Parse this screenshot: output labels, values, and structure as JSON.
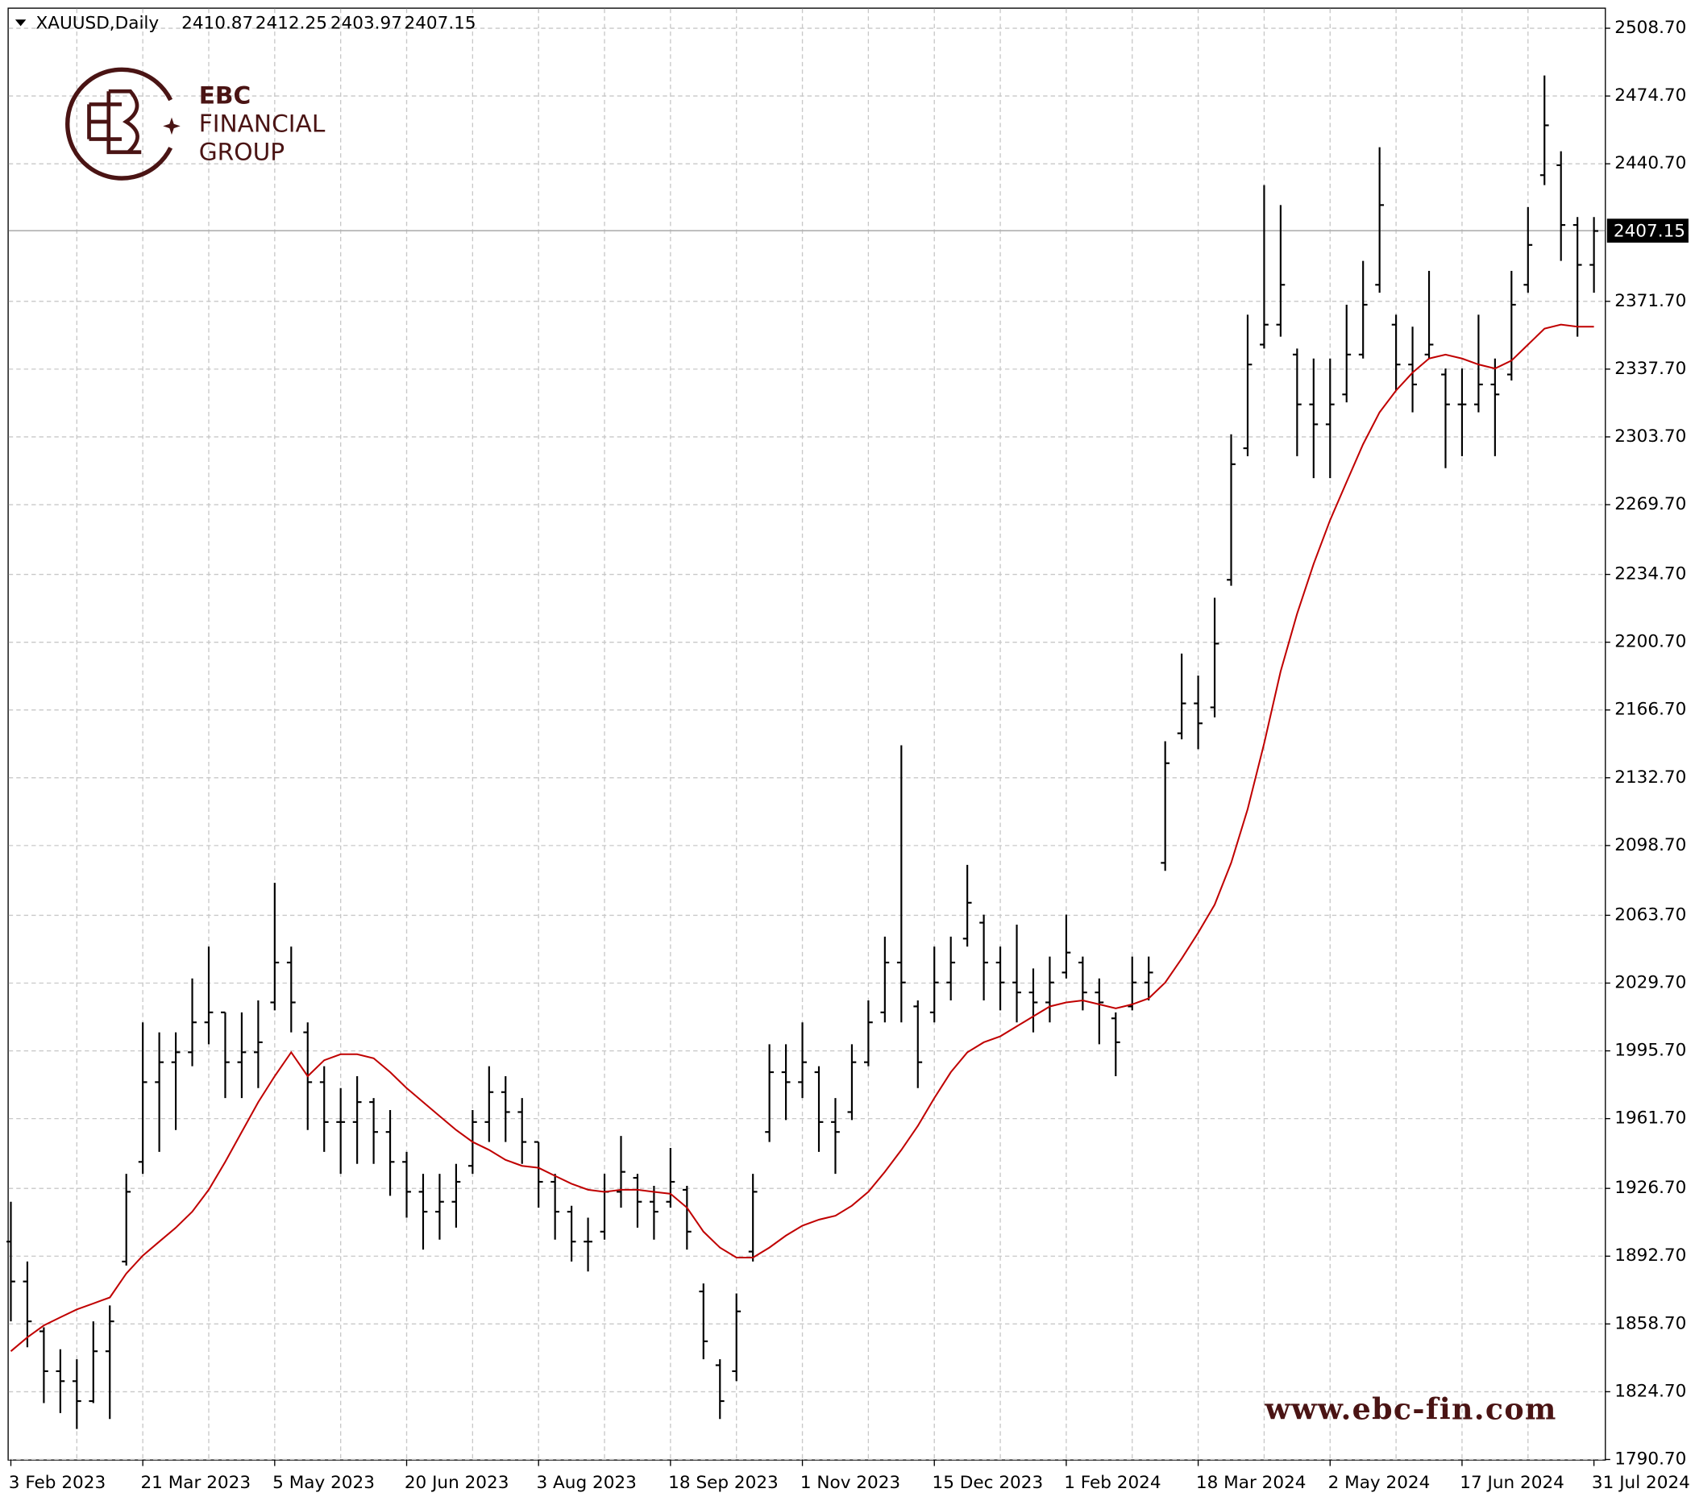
{
  "chart_data": {
    "type": "ohlc",
    "symbol": "XAUUSD,Daily",
    "header_values": [
      2410.87,
      2412.25,
      2403.97,
      2407.15
    ],
    "brand": {
      "line1": "EBC",
      "line2": "FINANCIAL",
      "line3": "GROUP",
      "website": "www.ebc-fin.com"
    },
    "categories": [
      "3 Feb 2023",
      null,
      null,
      null,
      null,
      null,
      null,
      null,
      "21 Mar 2023",
      null,
      null,
      null,
      null,
      null,
      null,
      null,
      "5 May 2023",
      null,
      null,
      null,
      null,
      null,
      null,
      null,
      "20 Jun 2023",
      null,
      null,
      null,
      null,
      null,
      null,
      null,
      "3 Aug 2023",
      null,
      null,
      null,
      null,
      null,
      null,
      null,
      "18 Sep 2023",
      null,
      null,
      null,
      null,
      null,
      null,
      null,
      "1 Nov 2023",
      null,
      null,
      null,
      null,
      null,
      null,
      null,
      "15 Dec 2023",
      null,
      null,
      null,
      null,
      null,
      null,
      null,
      "1 Feb 2024",
      null,
      null,
      null,
      null,
      null,
      null,
      null,
      "18 Mar 2024",
      null,
      null,
      null,
      null,
      null,
      null,
      null,
      "2 May 2024",
      null,
      null,
      null,
      null,
      null,
      null,
      null,
      "17 Jun 2024",
      null,
      null,
      null,
      null,
      null,
      null,
      null,
      "31 Jul 2024"
    ],
    "open": [
      1900,
      1880,
      1855,
      1835,
      1830,
      1820,
      1845,
      1890,
      1940,
      1980,
      1990,
      1995,
      2010,
      2015,
      1990,
      1995,
      2020,
      2040,
      2005,
      1980,
      1960,
      1960,
      1970,
      1955,
      1940,
      1925,
      1915,
      1920,
      1938,
      1960,
      1975,
      1965,
      1950,
      1930,
      1915,
      1900,
      1905,
      1925,
      1932,
      1920,
      1920,
      1926,
      1875,
      1838,
      1835,
      1895,
      1955,
      1985,
      1980,
      1985,
      1960,
      1965,
      1990,
      2015,
      2040,
      2018,
      2015,
      2030,
      2052,
      2060,
      2040,
      2030,
      2025,
      2020,
      2035,
      2040,
      2025,
      2012,
      2018,
      2030,
      2090,
      2155,
      2170,
      2168,
      2232,
      2298,
      2350,
      2360,
      2345,
      2320,
      2310,
      2325,
      2345,
      2380,
      2360,
      2340,
      2345,
      2335,
      2320,
      2320,
      2330,
      2335,
      2380,
      2435,
      2440,
      2410,
      2390
    ],
    "high": [
      1920,
      1890,
      1857,
      1846,
      1841,
      1860,
      1868,
      1934,
      2010,
      2005,
      2005,
      2032,
      2048,
      2015,
      2015,
      2021,
      2080,
      2048,
      2010,
      1988,
      1977,
      1983,
      1972,
      1966,
      1945,
      1934,
      1934,
      1939,
      1966,
      1988,
      1983,
      1972,
      1950,
      1934,
      1918,
      1912,
      1934,
      1953,
      1934,
      1928,
      1947,
      1928,
      1879,
      1841,
      1874,
      1934,
      1999,
      1999,
      2010,
      1988,
      1972,
      1999,
      2021,
      2053,
      2149,
      2021,
      2048,
      2053,
      2089,
      2064,
      2048,
      2059,
      2037,
      2043,
      2064,
      2043,
      2032,
      2015,
      2043,
      2043,
      2151,
      2195,
      2184,
      2223,
      2305,
      2365,
      2430,
      2420,
      2348,
      2343,
      2343,
      2370,
      2392,
      2449,
      2365,
      2359,
      2387,
      2338,
      2338,
      2365,
      2343,
      2387,
      2419,
      2485,
      2447,
      2414,
      2414
    ],
    "low": [
      1860,
      1847,
      1819,
      1814,
      1806,
      1819,
      1811,
      1888,
      1934,
      1945,
      1956,
      1988,
      1999,
      1972,
      1972,
      1977,
      2016,
      2005,
      1956,
      1945,
      1934,
      1939,
      1939,
      1923,
      1912,
      1896,
      1901,
      1907,
      1934,
      1950,
      1950,
      1939,
      1917,
      1901,
      1890,
      1885,
      1901,
      1917,
      1907,
      1901,
      1917,
      1896,
      1841,
      1811,
      1830,
      1890,
      1950,
      1961,
      1972,
      1945,
      1934,
      1961,
      1988,
      2010,
      2010,
      1977,
      2010,
      2021,
      2048,
      2021,
      2016,
      2010,
      2005,
      2010,
      2032,
      2016,
      1999,
      1983,
      2016,
      2021,
      2086,
      2152,
      2147,
      2163,
      2229,
      2294,
      2348,
      2354,
      2294,
      2283,
      2283,
      2321,
      2343,
      2376,
      2327,
      2316,
      2343,
      2288,
      2294,
      2316,
      2294,
      2332,
      2376,
      2430,
      2392,
      2354,
      2376
    ],
    "close": [
      1880,
      1860,
      1835,
      1830,
      1820,
      1845,
      1860,
      1925,
      1980,
      1990,
      1995,
      2010,
      2015,
      1990,
      1995,
      2000,
      2040,
      2020,
      1980,
      1960,
      1960,
      1970,
      1955,
      1940,
      1925,
      1915,
      1920,
      1930,
      1960,
      1975,
      1965,
      1950,
      1930,
      1915,
      1900,
      1900,
      1925,
      1935,
      1920,
      1915,
      1930,
      1905,
      1850,
      1820,
      1865,
      1925,
      1985,
      1980,
      1990,
      1960,
      1955,
      1990,
      2010,
      2040,
      2030,
      1990,
      2030,
      2040,
      2070,
      2040,
      2030,
      2025,
      2020,
      2030,
      2045,
      2025,
      2020,
      2000,
      2030,
      2035,
      2140,
      2170,
      2160,
      2200,
      2290,
      2340,
      2360,
      2380,
      2320,
      2310,
      2320,
      2345,
      2370,
      2420,
      2340,
      2330,
      2350,
      2320,
      2320,
      2330,
      2325,
      2370,
      2400,
      2460,
      2410,
      2390,
      2407
    ],
    "bar_color": "#000000",
    "moving_average": {
      "color": "#c00000",
      "values": [
        1845,
        1852,
        1858,
        1862,
        1866,
        1869,
        1872,
        1884,
        1893,
        1900,
        1907,
        1915,
        1926,
        1940,
        1955,
        1970,
        1983,
        1995,
        1983,
        1991,
        1994,
        1994,
        1992,
        1985,
        1977,
        1970,
        1963,
        1956,
        1950,
        1946,
        1941,
        1938,
        1937,
        1933,
        1929,
        1926,
        1925,
        1926,
        1926,
        1925,
        1924,
        1917,
        1905,
        1897,
        1892,
        1892,
        1897,
        1903,
        1908,
        1911,
        1913,
        1918,
        1925,
        1935,
        1946,
        1958,
        1972,
        1985,
        1995,
        2000,
        2003,
        2008,
        2013,
        2018,
        2020,
        2021,
        2019,
        2017,
        2019,
        2022,
        2030,
        2042,
        2055,
        2069,
        2090,
        2117,
        2150,
        2186,
        2215,
        2240,
        2262,
        2281,
        2300,
        2316,
        2327,
        2336,
        2343,
        2345,
        2343,
        2340,
        2338,
        2342,
        2350,
        2358,
        2360,
        2359,
        2359
      ]
    },
    "current_price": 2407.15,
    "ylim": [
      1790.7,
      2518.5
    ],
    "yticks": [
      {
        "value": 1790.7,
        "label": "1790.70"
      },
      {
        "value": 1824.7,
        "label": "1824.70"
      },
      {
        "value": 1858.7,
        "label": "1858.70"
      },
      {
        "value": 1892.7,
        "label": "1892.70"
      },
      {
        "value": 1926.7,
        "label": "1926.70"
      },
      {
        "value": 1961.7,
        "label": "1961.70"
      },
      {
        "value": 1995.7,
        "label": "1995.70"
      },
      {
        "value": 2029.7,
        "label": "2029.70"
      },
      {
        "value": 2063.7,
        "label": "2063.70"
      },
      {
        "value": 2098.7,
        "label": "2098.70"
      },
      {
        "value": 2132.7,
        "label": "2132.70"
      },
      {
        "value": 2166.7,
        "label": "2166.70"
      },
      {
        "value": 2200.7,
        "label": "2200.70"
      },
      {
        "value": 2234.7,
        "label": "2234.70"
      },
      {
        "value": 2269.7,
        "label": "2269.70"
      },
      {
        "value": 2303.7,
        "label": "2303.70"
      },
      {
        "value": 2337.7,
        "label": "2337.70"
      },
      {
        "value": 2371.7,
        "label": "2371.70"
      },
      {
        "value": 2440.7,
        "label": "2440.70"
      },
      {
        "value": 2474.7,
        "label": "2474.70"
      },
      {
        "value": 2508.7,
        "label": "2508.70"
      }
    ],
    "grid": true
  }
}
